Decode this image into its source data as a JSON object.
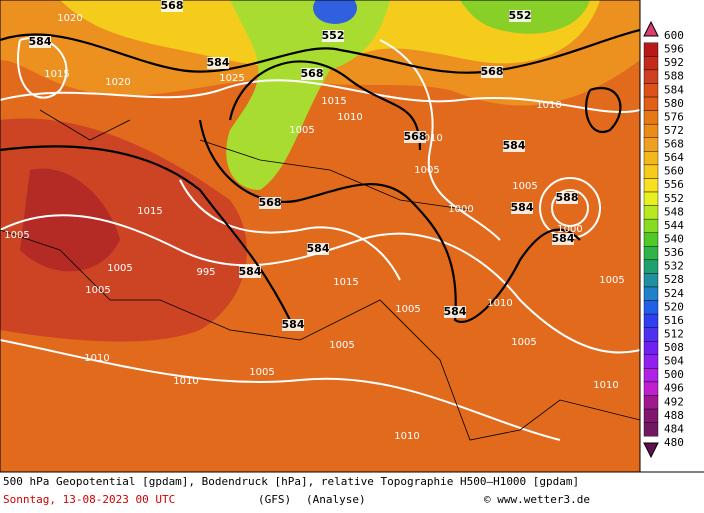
{
  "map": {
    "caption": "500 hPa Geopotential [gpdam], Bodendruck [hPa], relative Topographie H500—H1000 [gpdam]",
    "date": "Sonntag, 13-08-2023  00 UTC",
    "model": "(GFS)",
    "run": "(Analyse)",
    "credit": "© www.wetter3.de",
    "scale": {
      "values": [
        600,
        596,
        592,
        588,
        584,
        580,
        576,
        572,
        568,
        564,
        560,
        556,
        552,
        548,
        544,
        540,
        536,
        532,
        528,
        524,
        520,
        516,
        512,
        508,
        504,
        500,
        496,
        492,
        488,
        484,
        480
      ],
      "colors": [
        "#d8406e",
        "#b81818",
        "#c42a1a",
        "#d04020",
        "#dc5218",
        "#e06018",
        "#e67818",
        "#ec8c18",
        "#f0a020",
        "#f4b81c",
        "#f6cc1c",
        "#f8e020",
        "#e8f020",
        "#b8e820",
        "#88dc20",
        "#50c828",
        "#30b448",
        "#20a070",
        "#2090a0",
        "#2080c8",
        "#2060e8",
        "#3040f0",
        "#5030f0",
        "#7020f0",
        "#9020f0",
        "#b020e8",
        "#c020d0",
        "#a01890",
        "#801870",
        "#701860",
        "#601050"
      ]
    },
    "isobar_labels": [
      1020,
      1015,
      1020,
      1025,
      1015,
      1010,
      1005,
      1010,
      1010,
      1005,
      1005,
      1000,
      1005,
      1005,
      1005,
      1010,
      1010,
      1005,
      1005,
      1005,
      1010,
      1005,
      1010,
      1005,
      1010,
      1015,
      1015,
      995,
      1000
    ],
    "height_labels": [
      584,
      568,
      552,
      552,
      584,
      568,
      568,
      568,
      584,
      588,
      584,
      584,
      568,
      584,
      584,
      584,
      584
    ]
  }
}
